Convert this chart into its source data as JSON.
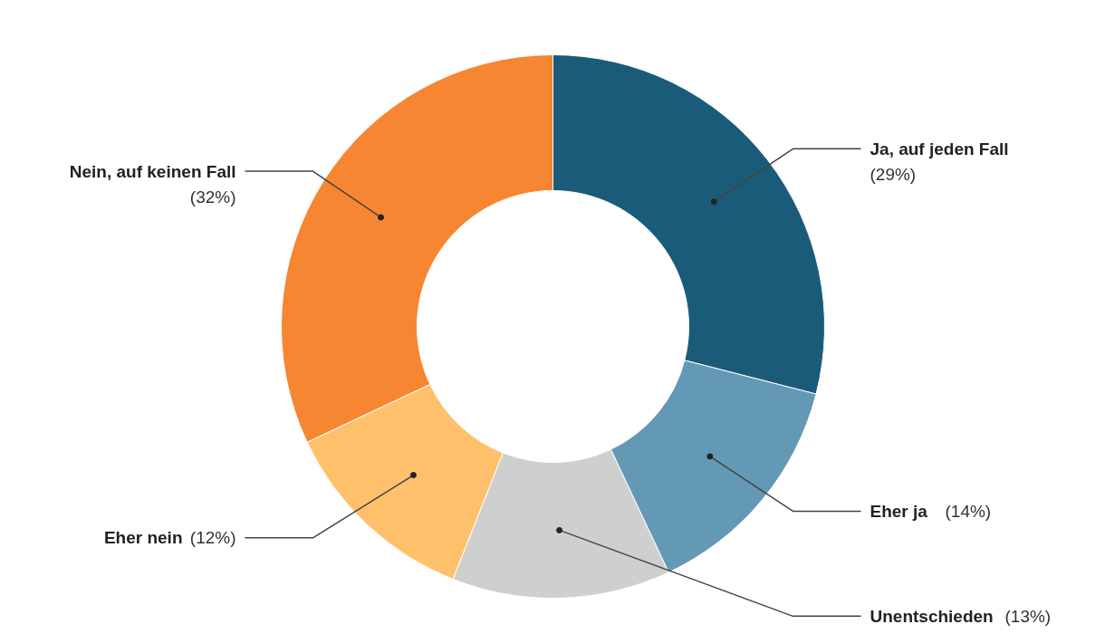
{
  "chart_data": {
    "type": "donut",
    "categories": [
      "Ja, auf jeden Fall",
      "Eher ja",
      "Unentschieden",
      "Eher nein",
      "Nein, auf keinen Fall"
    ],
    "values": [
      29,
      14,
      13,
      12,
      32
    ],
    "value_labels": [
      "(29%)",
      "(14%)",
      "(13%)",
      "(12%)",
      "(32%)"
    ],
    "colors": [
      "#1b5b7a",
      "#6399b5",
      "#cfcfcf",
      "#ffc06c",
      "#f68631"
    ]
  }
}
